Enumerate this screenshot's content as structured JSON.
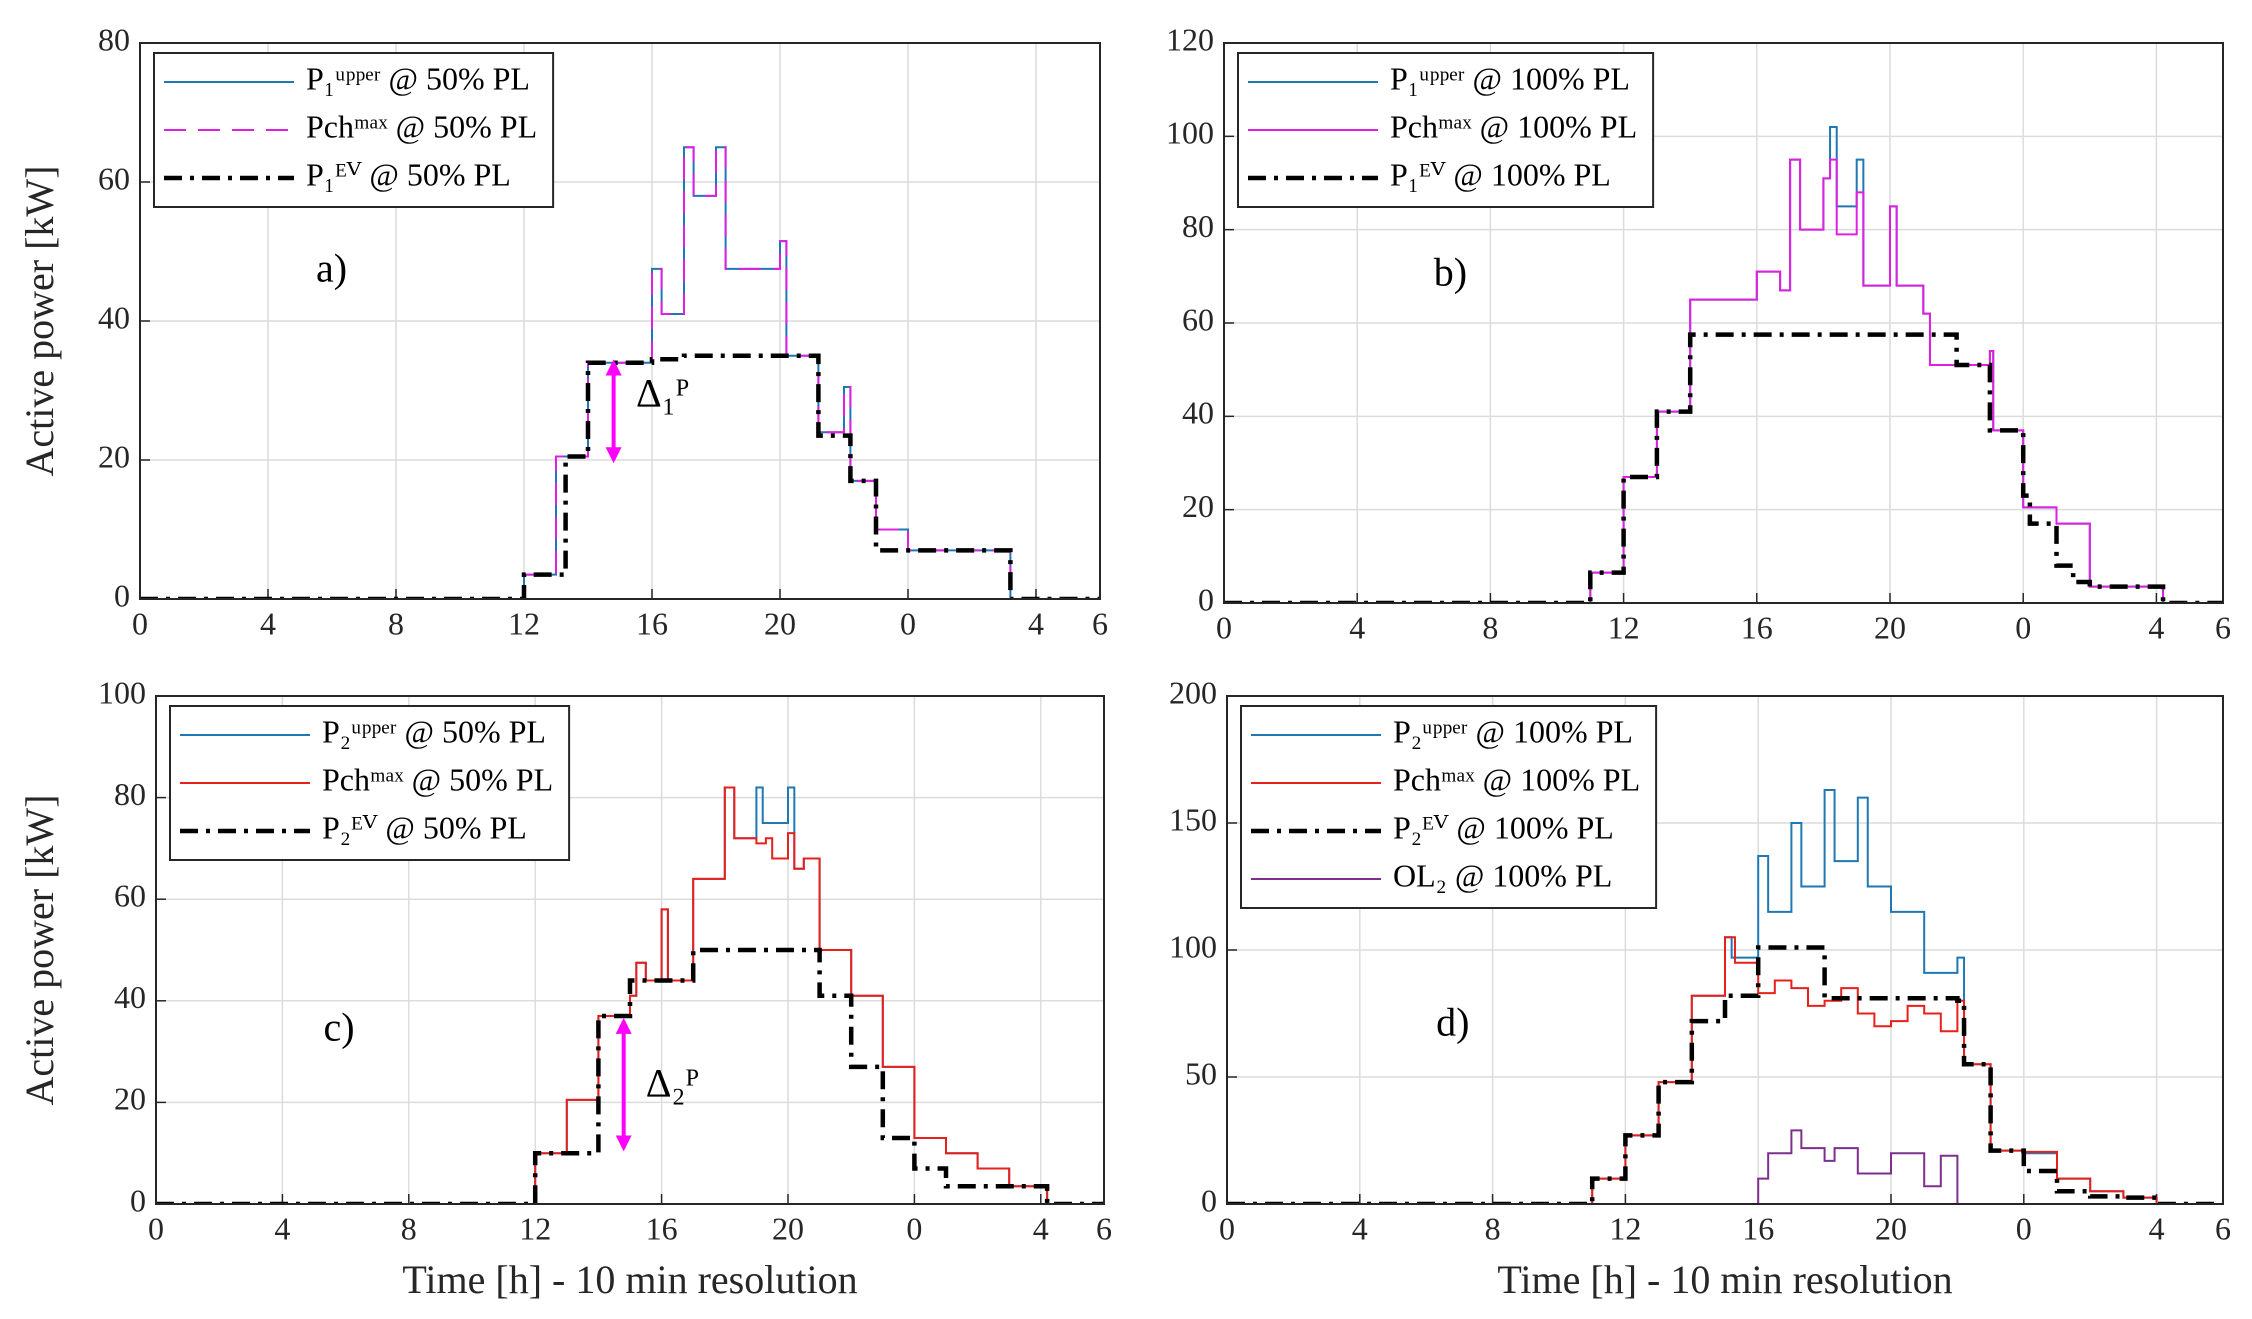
{
  "chart_data": [
    {
      "type": "line",
      "drawstyle": "steps-post",
      "grid": true,
      "legend": "upper left",
      "ylabel": "Active power [kW]",
      "xlim": [
        0,
        30
      ],
      "xticks": [
        0,
        4,
        8,
        12,
        16,
        20,
        {
          "value": 24,
          "label": "0"
        },
        {
          "value": 28,
          "label": "4"
        },
        {
          "value": 30,
          "label": "6"
        }
      ],
      "ylim": [
        0,
        80
      ],
      "yticks": [
        0,
        20,
        40,
        60,
        80
      ],
      "series": [
        {
          "name": "P₁ᵘᵖᵖᵉʳ @ 50% PL",
          "color": "#1f77b4",
          "linestyle": "solid",
          "x": [
            0,
            12,
            13,
            14,
            16,
            16.3,
            17,
            17.3,
            18,
            18.3,
            20,
            20.2,
            21.2,
            22,
            22.2,
            23,
            24,
            27.2,
            30
          ],
          "values": [
            0,
            3.5,
            20.5,
            34,
            47.5,
            41,
            65,
            58,
            65,
            47.5,
            51.5,
            35,
            24,
            30.5,
            17,
            10,
            7,
            0,
            0
          ]
        },
        {
          "name": "Pchᵐᵃˣ @ 50% PL",
          "color": "#e020e0",
          "linestyle": "dashed",
          "x": [
            0,
            12,
            13,
            14,
            16,
            16.3,
            17,
            17.3,
            18,
            18.3,
            20,
            20.2,
            21.2,
            22,
            22.2,
            23,
            24,
            27.2,
            30
          ],
          "values": [
            0,
            3.5,
            20.5,
            34,
            47.5,
            41,
            65,
            58,
            65,
            47.5,
            51.5,
            35,
            24,
            30.5,
            17,
            10,
            7,
            0,
            0
          ]
        },
        {
          "name": "P₁ᴱⱽ @ 50% PL",
          "color": "#000000",
          "linestyle": "dashdot",
          "x": [
            0,
            12,
            13.3,
            14,
            16,
            17,
            21.2,
            22.2,
            23,
            27.2,
            30
          ],
          "values": [
            0,
            3.5,
            20.5,
            34,
            34.5,
            35,
            23.5,
            17,
            7,
            0,
            0
          ]
        }
      ],
      "annotations": [
        {
          "text": "a)",
          "x": 5.5,
          "y": 47
        },
        {
          "text": "Δ₁ᴾ",
          "x": 15.5,
          "y": 29
        }
      ],
      "arrows": [
        {
          "x": 14.8,
          "y": [
            20,
            34
          ],
          "color": "#ff00ff"
        }
      ]
    },
    {
      "type": "line",
      "drawstyle": "steps-post",
      "grid": true,
      "legend": "upper left",
      "xlim": [
        0,
        30
      ],
      "xticks": [
        0,
        4,
        8,
        12,
        16,
        20,
        {
          "value": 24,
          "label": "0"
        },
        {
          "value": 28,
          "label": "4"
        },
        {
          "value": 30,
          "label": "6"
        }
      ],
      "ylim": [
        0,
        120
      ],
      "yticks": [
        0,
        20,
        40,
        60,
        80,
        100,
        120
      ],
      "series": [
        {
          "name": "P₁ᵘᵖᵖᵉʳ @ 100% PL",
          "color": "#1f77b4",
          "linestyle": "solid",
          "x": [
            0,
            11,
            12,
            13,
            14,
            16,
            16.7,
            17,
            17.3,
            18,
            18.2,
            18.4,
            19,
            19.2,
            20,
            20.2,
            21,
            21.2,
            22,
            23,
            23.1,
            24,
            25,
            26,
            28.2,
            30
          ],
          "values": [
            0,
            6.5,
            27,
            41,
            65,
            71,
            67,
            95,
            80,
            91,
            102,
            85,
            95,
            68,
            85,
            68,
            62,
            51,
            51,
            54,
            37,
            20.5,
            17,
            3.5,
            0,
            0
          ]
        },
        {
          "name": "Pchᵐᵃˣ @ 100% PL",
          "color": "#e020e0",
          "linestyle": "solid",
          "x": [
            0,
            11,
            12,
            13,
            14,
            16,
            16.7,
            17,
            17.3,
            18,
            18.2,
            18.4,
            19,
            19.2,
            20,
            20.2,
            21,
            21.2,
            22,
            23,
            23.1,
            24,
            25,
            26,
            28.2,
            30
          ],
          "values": [
            0,
            6.5,
            27,
            41,
            65,
            71,
            67,
            95,
            80,
            91,
            95,
            79,
            88,
            68,
            85,
            68,
            62,
            51,
            51,
            54,
            37,
            20.5,
            17,
            3.5,
            0,
            0
          ]
        },
        {
          "name": "P₁ᴱⱽ @ 100% PL",
          "color": "#000000",
          "linestyle": "dashdot",
          "x": [
            0,
            11,
            12,
            13,
            14,
            22,
            23,
            24,
            24.2,
            25,
            25.5,
            26,
            28.2,
            30
          ],
          "values": [
            0,
            6.5,
            27,
            41,
            57.5,
            51,
            37,
            23,
            17,
            8,
            4.5,
            3.5,
            0,
            0
          ]
        }
      ],
      "annotations": [
        {
          "text": "b)",
          "x": 6.3,
          "y": 70
        }
      ],
      "arrows": []
    },
    {
      "type": "line",
      "drawstyle": "steps-post",
      "grid": true,
      "legend": "upper left",
      "ylabel": "Active power [kW]",
      "xlabel": "Time [h] - 10 min resolution",
      "xlim": [
        0,
        30
      ],
      "xticks": [
        0,
        4,
        8,
        12,
        16,
        20,
        {
          "value": 24,
          "label": "0"
        },
        {
          "value": 28,
          "label": "4"
        },
        {
          "value": 30,
          "label": "6"
        }
      ],
      "ylim": [
        0,
        100
      ],
      "yticks": [
        0,
        20,
        40,
        60,
        80,
        100
      ],
      "series": [
        {
          "name": "P₂ᵘᵖᵖᵉʳ @ 50% PL",
          "color": "#1f77b4",
          "linestyle": "solid",
          "x": [
            0,
            12,
            13,
            14,
            15,
            15.2,
            15.5,
            16,
            16.2,
            17,
            18,
            18.3,
            19,
            19.2,
            20,
            20.2,
            20.5,
            21,
            22,
            23,
            24,
            25,
            26,
            27,
            28.2,
            30
          ],
          "values": [
            0,
            10,
            20.5,
            37,
            41,
            47.5,
            44,
            58,
            44,
            64,
            82,
            72,
            82,
            75,
            82,
            66,
            68,
            50,
            41,
            27,
            13,
            10,
            7,
            3.5,
            0,
            0
          ]
        },
        {
          "name": "Pchᵐᵃˣ @ 50% PL",
          "color": "#e8201c",
          "linestyle": "solid",
          "x": [
            0,
            12,
            13,
            14,
            15,
            15.2,
            15.5,
            16,
            16.2,
            17,
            18,
            18.3,
            19,
            19.3,
            19.5,
            20,
            20.2,
            20.5,
            21,
            22,
            23,
            24,
            25,
            26,
            27,
            28.2,
            30
          ],
          "values": [
            0,
            10,
            20.5,
            37,
            41,
            47.5,
            44,
            58,
            44,
            64,
            82,
            72,
            71,
            72,
            68,
            73,
            66,
            68,
            50,
            41,
            27,
            13,
            10,
            7,
            3.5,
            0,
            0
          ]
        },
        {
          "name": "P₂ᴱⱽ @ 50% PL",
          "color": "#000000",
          "linestyle": "dashdot",
          "x": [
            0,
            12,
            14,
            15,
            17,
            21,
            22,
            23,
            24,
            25,
            28.2,
            30
          ],
          "values": [
            0,
            10,
            37,
            44,
            50,
            41,
            27,
            13,
            7,
            3.5,
            0,
            0
          ]
        }
      ],
      "annotations": [
        {
          "text": "c)",
          "x": 5.3,
          "y": 34
        },
        {
          "text": "Δ₂ᴾ",
          "x": 15.5,
          "y": 23
        }
      ],
      "arrows": [
        {
          "x": 14.8,
          "y": [
            11,
            36
          ],
          "color": "#ff00ff"
        }
      ]
    },
    {
      "type": "line",
      "drawstyle": "steps-post",
      "grid": true,
      "legend": "upper left",
      "xlabel": "Time [h] - 10 min resolution",
      "xlim": [
        0,
        30
      ],
      "xticks": [
        0,
        4,
        8,
        12,
        16,
        20,
        {
          "value": 24,
          "label": "0"
        },
        {
          "value": 28,
          "label": "4"
        },
        {
          "value": 30,
          "label": "6"
        }
      ],
      "ylim": [
        0,
        200
      ],
      "yticks": [
        0,
        50,
        100,
        150,
        200
      ],
      "series": [
        {
          "name": "P₂ᵘᵖᵖᵉʳ @ 100% PL",
          "color": "#1f77b4",
          "linestyle": "solid",
          "x": [
            0,
            11,
            12,
            13,
            14,
            15,
            15.2,
            16,
            16.3,
            17,
            17.3,
            18,
            18.3,
            19,
            19.3,
            20,
            21,
            22,
            22.2,
            23,
            24,
            25,
            26,
            27,
            28,
            30
          ],
          "values": [
            0,
            10,
            27,
            48,
            82,
            105,
            97,
            137,
            115,
            150,
            125,
            163,
            135,
            160,
            125,
            115,
            91,
            97,
            55,
            21,
            20,
            10,
            5,
            2.5,
            0,
            0
          ]
        },
        {
          "name": "Pchᵐᵃˣ @ 100% PL",
          "color": "#e8201c",
          "linestyle": "solid",
          "x": [
            0,
            11,
            12,
            13,
            14,
            15,
            15.3,
            16,
            16.5,
            17,
            17.5,
            18,
            18.5,
            19,
            19.5,
            20,
            20.5,
            21,
            21.5,
            22,
            22.2,
            23,
            24,
            25,
            26,
            27,
            28,
            30
          ],
          "values": [
            0,
            10,
            27,
            48,
            82,
            105,
            95,
            83,
            88,
            85,
            78,
            80,
            85,
            75,
            70,
            72,
            78,
            75,
            68,
            80,
            55,
            21,
            20.5,
            10,
            5,
            2.5,
            0,
            0
          ]
        },
        {
          "name": "P₂ᴱⱽ @ 100% PL",
          "color": "#000000",
          "linestyle": "dashdot",
          "x": [
            0,
            11,
            12,
            13,
            14,
            15,
            16,
            18,
            22,
            22.2,
            23,
            24,
            25,
            26,
            27,
            28,
            30
          ],
          "values": [
            0,
            10,
            27,
            48,
            72,
            82,
            101,
            81,
            80,
            55,
            21,
            13,
            5,
            3,
            2.5,
            0,
            0
          ]
        },
        {
          "name": "OL₂ @ 100% PL",
          "color": "#7e2f8e",
          "linestyle": "solid",
          "x": [
            0,
            16,
            16.3,
            17,
            17.3,
            18,
            18.3,
            19,
            20,
            21,
            21.5,
            22,
            30
          ],
          "values": [
            0,
            10,
            20,
            29,
            22,
            17,
            22,
            12,
            20,
            7,
            19,
            0,
            0
          ]
        }
      ],
      "annotations": [
        {
          "text": "d)",
          "x": 6.3,
          "y": 70
        }
      ],
      "arrows": []
    }
  ]
}
